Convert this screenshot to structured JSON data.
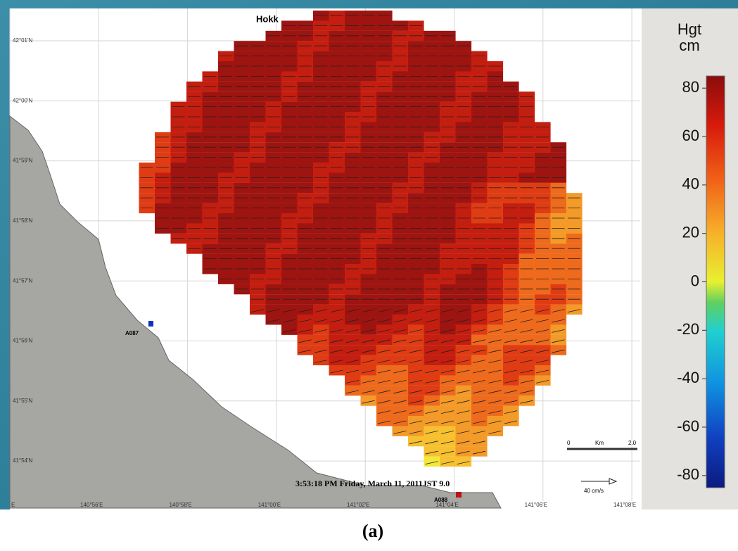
{
  "map": {
    "place_label": "Hokk",
    "timestamp": "3:53:18 PM Friday, March 11, 2011JST 9.0",
    "stations": [
      "A087",
      "A088"
    ],
    "latitudes": [
      "42°01'N",
      "42°00'N",
      "41°59'N",
      "41°58'N",
      "41°57'N",
      "41°56'N",
      "41°55'N",
      "41°54'N"
    ],
    "longitudes": [
      "E",
      "140°56'E",
      "140°58'E",
      "141°00'E",
      "141°02'E",
      "141°04'E",
      "141°06'E",
      "141°08'E"
    ],
    "scale_bar": {
      "start": "0",
      "unit": "Km",
      "end": "2.0"
    },
    "vector_scale": "40 cm/s"
  },
  "colorbar": {
    "title": "Hgt",
    "unit": "cm",
    "lim": [
      -85,
      85
    ],
    "ticks": [
      80,
      60,
      40,
      20,
      0,
      -20,
      -40,
      -60,
      -80
    ]
  },
  "caption": "(a)"
}
